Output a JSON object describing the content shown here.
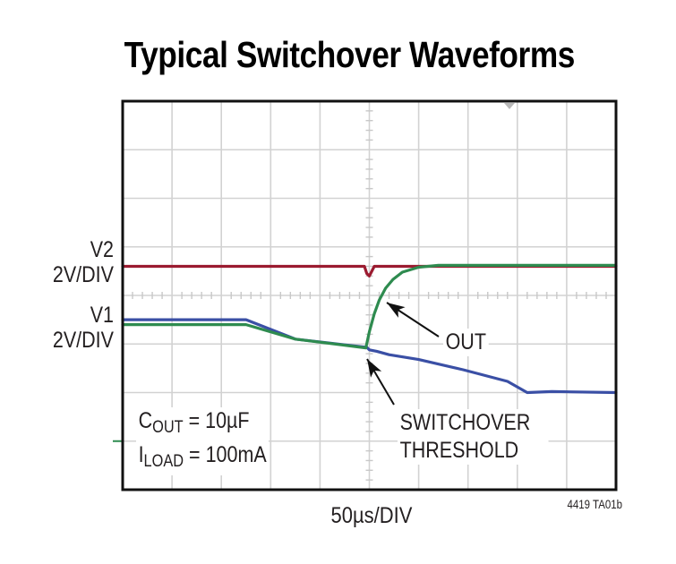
{
  "chart_data": {
    "type": "line",
    "title": "Typical Switchover Waveforms",
    "xlabel": "50µs/DIV",
    "figure_id": "4419 TA01b",
    "x_divisions": 10,
    "y_divisions": 8,
    "x_unit_per_div": "50µs",
    "grid": true,
    "trigger_marker_div": 7.84,
    "ground_marker_div_from_bottom": 1,
    "channel_labels": [
      {
        "name": "V2",
        "scale": "2V/DIV"
      },
      {
        "name": "V1",
        "scale": "2V/DIV"
      }
    ],
    "conditions": [
      {
        "symbol": "C",
        "sub": "OUT",
        "value": "= 10µF"
      },
      {
        "symbol": "I",
        "sub": "LOAD",
        "value": "= 100mA"
      }
    ],
    "annotations": [
      {
        "text": "OUT",
        "points_to": "OUT trace rising edge"
      },
      {
        "text": "SWITCHOVER THRESHOLD",
        "points_to": "V1 / OUT divergence point"
      }
    ],
    "series_units": "x in divisions (0-10), y in divisions above bottom (0-8)",
    "series": [
      {
        "name": "V2",
        "color": "#9b1b30",
        "x": [
          0,
          4.9,
          4.95,
          5.0,
          5.05,
          5.1,
          10
        ],
        "y": [
          4.6,
          4.6,
          4.45,
          4.4,
          4.5,
          4.6,
          4.6
        ]
      },
      {
        "name": "V1",
        "color": "#3a4fa5",
        "x": [
          0,
          2.5,
          3.5,
          4.95,
          5.0,
          5.15,
          5.4,
          6.0,
          6.9,
          7.8,
          8.2,
          8.7,
          10
        ],
        "y": [
          3.5,
          3.5,
          3.1,
          2.93,
          2.88,
          2.85,
          2.78,
          2.68,
          2.47,
          2.23,
          2.0,
          2.02,
          2.0
        ]
      },
      {
        "name": "OUT",
        "color": "#2e8b4f",
        "x": [
          0,
          2.5,
          3.5,
          4.93,
          5.0,
          5.1,
          5.2,
          5.33,
          5.48,
          5.67,
          6.0,
          6.4,
          7.1,
          10
        ],
        "y": [
          3.4,
          3.4,
          3.1,
          2.92,
          3.25,
          3.62,
          3.9,
          4.15,
          4.33,
          4.48,
          4.58,
          4.62,
          4.62,
          4.62
        ]
      }
    ]
  }
}
